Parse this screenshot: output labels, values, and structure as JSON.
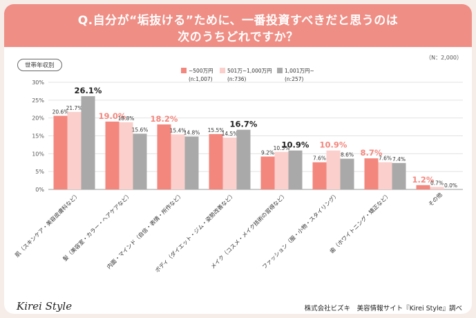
{
  "title": {
    "line1": "Q.自分が“垢抜ける”ために、一番投資すべきだと思うのは",
    "line2": "次のうちどれですか？"
  },
  "sample": "（N：2,000）",
  "group_label": "世帯年収別",
  "footer": {
    "logo": "Kirei Style",
    "credit": "株式会社ビズキ　美容情報サイト『Kirei Style』調べ"
  },
  "chart_data": {
    "type": "bar",
    "ylim": [
      0,
      30
    ],
    "yticks": [
      "0%",
      "5%",
      "10%",
      "15%",
      "20%",
      "25%",
      "30%"
    ],
    "grid": true,
    "legend_position": "top",
    "categories": [
      "肌（スキンケア・美容皮膚科など）",
      "髪（美容室・カラー・ヘアケアなど）",
      "内面・マインド（自信・表情・所作など）",
      "ボディ（ダイエット・ジム・姿勢改善など）",
      "メイク（コスメ・メイク技術の習得など）",
      "ファッション（服・小物・スタイリング）",
      "歯（ホワイトニング・矯正など）",
      "その他"
    ],
    "series": [
      {
        "name": "~500万円",
        "n": "(n:1,007)",
        "color": "#f3877e",
        "values": [
          20.6,
          19.0,
          18.2,
          15.5,
          9.2,
          7.6,
          8.7,
          1.2
        ],
        "labels": [
          "20.6%",
          "19.0%",
          "18.2%",
          "15.5%",
          "9.2%",
          "7.6%",
          "8.7%",
          "1.2%"
        ]
      },
      {
        "name": "501万~1,000万円",
        "n": "(n:736)",
        "color": "#fbcfcb",
        "values": [
          21.7,
          18.8,
          15.4,
          14.5,
          10.5,
          10.9,
          7.6,
          0.7
        ],
        "labels": [
          "21.7%",
          "18.8%",
          "15.4%",
          "14.5%",
          "10.5%",
          "10.9%",
          "7.6%",
          "0.7%"
        ]
      },
      {
        "name": "1,001万円~",
        "n": "(n:257)",
        "color": "#a9a9a9",
        "values": [
          26.1,
          15.6,
          14.8,
          16.7,
          10.9,
          8.6,
          7.4,
          0.0
        ],
        "labels": [
          "26.1%",
          "15.6%",
          "14.8%",
          "16.7%",
          "10.9%",
          "8.6%",
          "7.4%",
          "0.0%"
        ]
      }
    ],
    "highlights": [
      {
        "category": 0,
        "series": 2,
        "color": "#222222"
      },
      {
        "category": 1,
        "series": 0,
        "color": "#f3877e"
      },
      {
        "category": 2,
        "series": 0,
        "color": "#f3877e"
      },
      {
        "category": 3,
        "series": 2,
        "color": "#222222"
      },
      {
        "category": 4,
        "series": 2,
        "color": "#222222"
      },
      {
        "category": 5,
        "series": 1,
        "color": "#f3877e"
      },
      {
        "category": 6,
        "series": 0,
        "color": "#f3877e"
      },
      {
        "category": 7,
        "series": 0,
        "color": "#f3877e"
      }
    ]
  }
}
